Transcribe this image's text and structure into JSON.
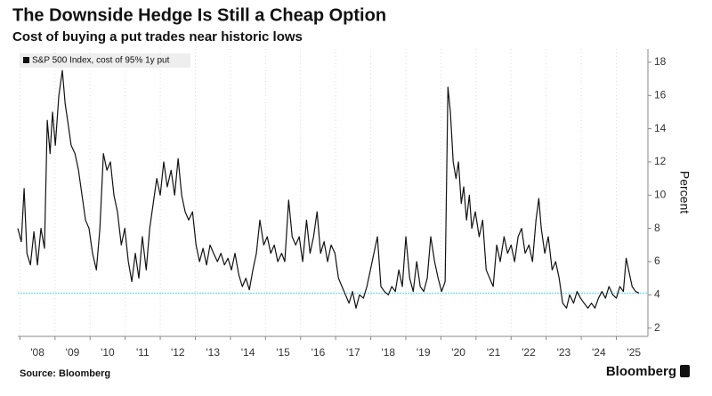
{
  "chart_data": {
    "type": "line",
    "title": "The Downside Hedge Is Still a Cheap Option",
    "subtitle": "Cost of buying a put trades near historic lows",
    "y_axis_label": "Percent",
    "source": "Source: Bloomberg",
    "brand": "Bloomberg",
    "legend": "top-left",
    "grid": true,
    "xlim": [
      2007.94,
      2025.9
    ],
    "ylim": [
      1.5,
      18.8
    ],
    "yticks": [
      2,
      4,
      6,
      8,
      10,
      12,
      14,
      16,
      18
    ],
    "xticks": [
      {
        "value": 2008,
        "label": "'08"
      },
      {
        "value": 2009,
        "label": "'09"
      },
      {
        "value": 2010,
        "label": "'10"
      },
      {
        "value": 2011,
        "label": "'11"
      },
      {
        "value": 2012,
        "label": "'12"
      },
      {
        "value": 2013,
        "label": "'13"
      },
      {
        "value": 2014,
        "label": "'14"
      },
      {
        "value": 2015,
        "label": "'15"
      },
      {
        "value": 2016,
        "label": "'16"
      },
      {
        "value": 2017,
        "label": "'17"
      },
      {
        "value": 2018,
        "label": "'18"
      },
      {
        "value": 2019,
        "label": "'19"
      },
      {
        "value": 2020,
        "label": "'20"
      },
      {
        "value": 2021,
        "label": "'21"
      },
      {
        "value": 2022,
        "label": "'22"
      },
      {
        "value": 2023,
        "label": "'23"
      },
      {
        "value": 2024,
        "label": "'24"
      },
      {
        "value": 2025,
        "label": "'25"
      }
    ],
    "reference_line": {
      "value": 4.1,
      "color": "#7fe3ea"
    },
    "x": [
      2007.94,
      2008.04,
      2008.12,
      2008.2,
      2008.3,
      2008.4,
      2008.5,
      2008.6,
      2008.7,
      2008.78,
      2008.86,
      2008.93,
      2009.01,
      2009.11,
      2009.21,
      2009.29,
      2009.36,
      2009.46,
      2009.57,
      2009.67,
      2009.77,
      2009.87,
      2009.97,
      2010.07,
      2010.18,
      2010.28,
      2010.38,
      2010.48,
      2010.58,
      2010.68,
      2010.78,
      2010.89,
      2010.99,
      2011.09,
      2011.19,
      2011.29,
      2011.39,
      2011.49,
      2011.6,
      2011.7,
      2011.8,
      2011.9,
      2012.0,
      2012.1,
      2012.2,
      2012.31,
      2012.41,
      2012.51,
      2012.61,
      2012.71,
      2012.81,
      2012.92,
      2013.02,
      2013.12,
      2013.22,
      2013.32,
      2013.42,
      2013.52,
      2013.63,
      2013.73,
      2013.83,
      2013.93,
      2014.03,
      2014.13,
      2014.24,
      2014.34,
      2014.44,
      2014.54,
      2014.64,
      2014.74,
      2014.84,
      2014.95,
      2015.05,
      2015.15,
      2015.25,
      2015.35,
      2015.46,
      2015.55,
      2015.66,
      2015.76,
      2015.86,
      2015.96,
      2016.06,
      2016.17,
      2016.27,
      2016.37,
      2016.47,
      2016.57,
      2016.67,
      2016.77,
      2016.87,
      2016.98,
      2017.08,
      2017.18,
      2017.28,
      2017.38,
      2017.48,
      2017.58,
      2017.68,
      2017.79,
      2017.89,
      2017.99,
      2018.09,
      2018.19,
      2018.29,
      2018.39,
      2018.5,
      2018.6,
      2018.7,
      2018.8,
      2018.9,
      2019.0,
      2019.11,
      2019.21,
      2019.31,
      2019.41,
      2019.51,
      2019.61,
      2019.71,
      2019.82,
      2019.92,
      2020.02,
      2020.12,
      2020.2,
      2020.27,
      2020.35,
      2020.43,
      2020.5,
      2020.58,
      2020.65,
      2020.73,
      2020.81,
      2020.88,
      2020.98,
      2021.09,
      2021.19,
      2021.29,
      2021.39,
      2021.49,
      2021.59,
      2021.69,
      2021.8,
      2021.9,
      2022.0,
      2022.1,
      2022.2,
      2022.3,
      2022.4,
      2022.51,
      2022.61,
      2022.71,
      2022.79,
      2022.86,
      2022.96,
      2023.06,
      2023.17,
      2023.27,
      2023.37,
      2023.47,
      2023.58,
      2023.67,
      2023.78,
      2023.88,
      2023.98,
      2024.08,
      2024.19,
      2024.29,
      2024.39,
      2024.49,
      2024.59,
      2024.69,
      2024.79,
      2024.9,
      2025.0,
      2025.1,
      2025.2,
      2025.28,
      2025.35,
      2025.45,
      2025.55,
      2025.65
    ],
    "series": [
      {
        "name": "S&P 500 Index, cost of 95% 1y put",
        "color": "#111111",
        "values": [
          8.0,
          7.2,
          10.4,
          6.5,
          5.8,
          7.8,
          5.8,
          8,
          6.8,
          14.5,
          12.5,
          15,
          13,
          16,
          17.5,
          15.5,
          14.5,
          13,
          12.5,
          11.5,
          10,
          8.5,
          8,
          6.5,
          5.5,
          8,
          12.5,
          11.5,
          12,
          10,
          9,
          7,
          8,
          6,
          4.8,
          6.5,
          5,
          7.5,
          5.5,
          8,
          9.5,
          11,
          10,
          12,
          10.5,
          11.5,
          10,
          12.2,
          10,
          9,
          8.5,
          9,
          7,
          6,
          6.8,
          5.8,
          7,
          6.5,
          6,
          6.5,
          5.8,
          6.2,
          5.5,
          6.5,
          5.2,
          4.5,
          5,
          4.3,
          5.5,
          6.5,
          8.5,
          7,
          7.5,
          6.5,
          7,
          6,
          6.5,
          6,
          9.7,
          7.5,
          7,
          7.5,
          6,
          8.5,
          6.5,
          7.5,
          9,
          6.5,
          7.2,
          6,
          7,
          6.5,
          5,
          4.5,
          4,
          3.5,
          4.2,
          3.2,
          4,
          3.8,
          4.5,
          5.5,
          6.5,
          7.5,
          4.5,
          4.2,
          4,
          4.5,
          4.2,
          5.5,
          4.5,
          7.5,
          5,
          4.2,
          6,
          4.5,
          4.2,
          5,
          7.5,
          6,
          5,
          4.2,
          4.8,
          16.5,
          15,
          12,
          11,
          12,
          9.5,
          10.5,
          8.5,
          10,
          8,
          9,
          7.5,
          8.5,
          5.5,
          5,
          4.5,
          7,
          6,
          7.5,
          6.5,
          7,
          6,
          7.5,
          8,
          6.5,
          7,
          6,
          8.5,
          9.8,
          8,
          6.5,
          7.5,
          5.5,
          6,
          5,
          3.5,
          3.2,
          4,
          3.5,
          4.2,
          3.8,
          3.5,
          3.2,
          3.5,
          3.2,
          3.8,
          4.2,
          3.8,
          4.5,
          4,
          3.8,
          4.5,
          4.2,
          6.2,
          5.5,
          4.5,
          4.2,
          4.1
        ]
      }
    ]
  }
}
